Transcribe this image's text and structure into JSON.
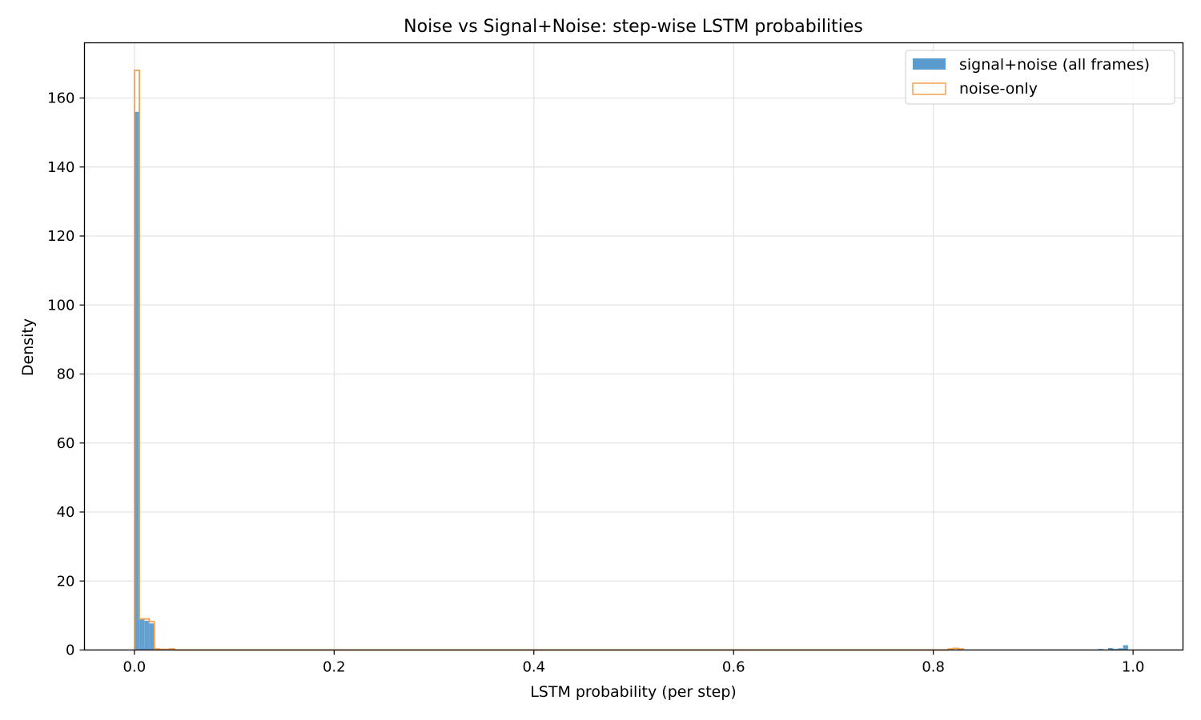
{
  "chart_data": {
    "type": "histogram",
    "title": "Noise vs Signal+Noise: step-wise LSTM probabilities",
    "xlabel": "LSTM probability (per step)",
    "ylabel": "Density",
    "xlim": [
      -0.05,
      1.05
    ],
    "ylim": [
      0,
      176
    ],
    "xticks": [
      0.0,
      0.2,
      0.4,
      0.6,
      0.8,
      1.0
    ],
    "xtick_labels": [
      "0.0",
      "0.2",
      "0.4",
      "0.6",
      "0.8",
      "1.0"
    ],
    "yticks": [
      0,
      20,
      40,
      60,
      80,
      100,
      120,
      140,
      160
    ],
    "ytick_labels": [
      "0",
      "20",
      "40",
      "60",
      "80",
      "100",
      "120",
      "140",
      "160"
    ],
    "grid": true,
    "legend_position": "top-right",
    "series": [
      {
        "name": "signal+noise (all frames)",
        "style": "filled",
        "color": "#5b9bd0",
        "bin_width": 0.005,
        "bins": [
          {
            "x": 0.0,
            "density": 156
          },
          {
            "x": 0.005,
            "density": 9
          },
          {
            "x": 0.01,
            "density": 8.5
          },
          {
            "x": 0.015,
            "density": 7.7
          },
          {
            "x": 0.965,
            "density": 0.3
          },
          {
            "x": 0.975,
            "density": 0.6
          },
          {
            "x": 0.98,
            "density": 0.3
          },
          {
            "x": 0.985,
            "density": 0.5
          },
          {
            "x": 0.99,
            "density": 1.4
          }
        ]
      },
      {
        "name": "noise-only",
        "style": "step",
        "color": "#f5a04e",
        "bin_width": 0.005,
        "bins": [
          {
            "x": 0.0,
            "density": 168
          },
          {
            "x": 0.005,
            "density": 9
          },
          {
            "x": 0.01,
            "density": 9
          },
          {
            "x": 0.015,
            "density": 8.2
          },
          {
            "x": 0.02,
            "density": 0.3
          },
          {
            "x": 0.025,
            "density": 0.2
          },
          {
            "x": 0.03,
            "density": 0.2
          },
          {
            "x": 0.035,
            "density": 0.3
          },
          {
            "x": 0.815,
            "density": 0.3
          },
          {
            "x": 0.82,
            "density": 0.5
          },
          {
            "x": 0.825,
            "density": 0.3
          }
        ]
      }
    ]
  }
}
